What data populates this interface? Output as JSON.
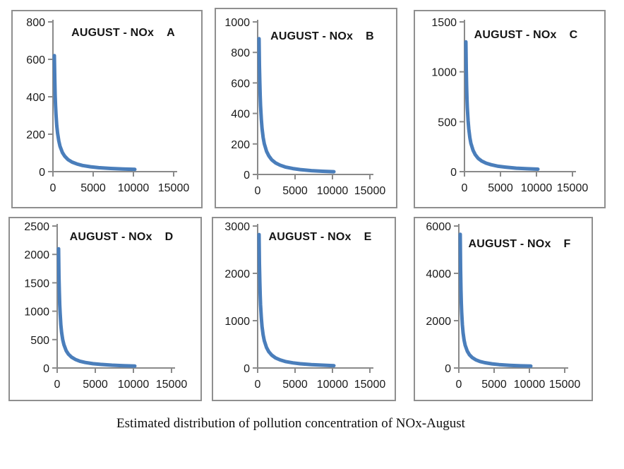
{
  "caption": "Estimated distribution of pollution concentration of NOx-August",
  "colors": {
    "curve": "#4A7EBB",
    "axis": "#8A8A8A",
    "tick_text": "#1A1A1A",
    "panel_border": "#8F8F8F"
  },
  "chart_data": [
    {
      "type": "line",
      "title": "AUGUST - NOx",
      "panel": "A",
      "xlim": [
        0,
        15000
      ],
      "ylim": [
        0,
        800
      ],
      "xticks": [
        0,
        5000,
        10000,
        15000
      ],
      "yticks": [
        0,
        200,
        400,
        600,
        800
      ],
      "points": [
        [
          0,
          620
        ],
        [
          50,
          495
        ],
        [
          100,
          411
        ],
        [
          150,
          352
        ],
        [
          200,
          308
        ],
        [
          300,
          246
        ],
        [
          400,
          205
        ],
        [
          550,
          164
        ],
        [
          700,
          136
        ],
        [
          1000,
          102
        ],
        [
          1300,
          82
        ],
        [
          1700,
          64
        ],
        [
          2200,
          51
        ],
        [
          2800,
          41
        ],
        [
          3500,
          33
        ],
        [
          4500,
          26
        ],
        [
          5500,
          21
        ],
        [
          7000,
          17
        ],
        [
          8500,
          14
        ],
        [
          10000,
          12
        ]
      ]
    },
    {
      "type": "line",
      "title": "AUGUST - NOx",
      "panel": "B",
      "xlim": [
        0,
        15000
      ],
      "ylim": [
        0,
        1000
      ],
      "xticks": [
        0,
        5000,
        10000,
        15000
      ],
      "yticks": [
        0,
        200,
        400,
        600,
        800,
        1000
      ],
      "points": [
        [
          0,
          890
        ],
        [
          50,
          716
        ],
        [
          100,
          599
        ],
        [
          150,
          515
        ],
        [
          200,
          451
        ],
        [
          300,
          362
        ],
        [
          400,
          303
        ],
        [
          550,
          242
        ],
        [
          700,
          202
        ],
        [
          1000,
          152
        ],
        [
          1300,
          122
        ],
        [
          1700,
          96
        ],
        [
          2200,
          76
        ],
        [
          2800,
          61
        ],
        [
          3500,
          49
        ],
        [
          4500,
          39
        ],
        [
          5500,
          32
        ],
        [
          7000,
          25
        ],
        [
          8500,
          21
        ],
        [
          10000,
          18
        ]
      ]
    },
    {
      "type": "line",
      "title": "AUGUST - NOx",
      "panel": "C",
      "xlim": [
        0,
        15000
      ],
      "ylim": [
        0,
        1500
      ],
      "xticks": [
        0,
        5000,
        10000,
        15000
      ],
      "yticks": [
        0,
        500,
        1000,
        1500
      ],
      "points": [
        [
          0,
          1300
        ],
        [
          50,
          1036
        ],
        [
          100,
          861
        ],
        [
          150,
          737
        ],
        [
          200,
          644
        ],
        [
          300,
          514
        ],
        [
          400,
          428
        ],
        [
          550,
          342
        ],
        [
          700,
          284
        ],
        [
          1000,
          213
        ],
        [
          1300,
          170
        ],
        [
          1700,
          134
        ],
        [
          2200,
          106
        ],
        [
          2800,
          85
        ],
        [
          3500,
          69
        ],
        [
          4500,
          54
        ],
        [
          5500,
          45
        ],
        [
          7000,
          35
        ],
        [
          8500,
          29
        ],
        [
          10000,
          25
        ]
      ]
    },
    {
      "type": "line",
      "title": "AUGUST - NOx",
      "panel": "D",
      "xlim": [
        0,
        15000
      ],
      "ylim": [
        0,
        2500
      ],
      "xticks": [
        0,
        5000,
        10000,
        15000
      ],
      "yticks": [
        0,
        500,
        1000,
        1500,
        2000,
        2500
      ],
      "points": [
        [
          0,
          2100
        ],
        [
          50,
          1622
        ],
        [
          100,
          1321
        ],
        [
          150,
          1114
        ],
        [
          200,
          963
        ],
        [
          300,
          758
        ],
        [
          400,
          625
        ],
        [
          550,
          495
        ],
        [
          700,
          409
        ],
        [
          1000,
          304
        ],
        [
          1300,
          242
        ],
        [
          1700,
          190
        ],
        [
          2200,
          150
        ],
        [
          2800,
          120
        ],
        [
          3500,
          97
        ],
        [
          4500,
          76
        ],
        [
          5500,
          63
        ],
        [
          7000,
          50
        ],
        [
          8500,
          41
        ],
        [
          10000,
          35
        ]
      ]
    },
    {
      "type": "line",
      "title": "AUGUST - NOx",
      "panel": "E",
      "xlim": [
        0,
        15000
      ],
      "ylim": [
        0,
        3000
      ],
      "xticks": [
        0,
        5000,
        10000,
        15000
      ],
      "yticks": [
        0,
        1000,
        2000,
        3000
      ],
      "points": [
        [
          0,
          2820
        ],
        [
          50,
          2209
        ],
        [
          100,
          1815
        ],
        [
          150,
          1540
        ],
        [
          200,
          1338
        ],
        [
          300,
          1060
        ],
        [
          400,
          877
        ],
        [
          550,
          697
        ],
        [
          700,
          578
        ],
        [
          1000,
          431
        ],
        [
          1300,
          344
        ],
        [
          1700,
          271
        ],
        [
          2200,
          214
        ],
        [
          2800,
          171
        ],
        [
          3500,
          138
        ],
        [
          4500,
          109
        ],
        [
          5500,
          90
        ],
        [
          7000,
          71
        ],
        [
          8500,
          59
        ],
        [
          10000,
          50
        ]
      ]
    },
    {
      "type": "line",
      "title": "AUGUST - NOx",
      "panel": "F",
      "xlim": [
        0,
        15000
      ],
      "ylim": [
        0,
        6000
      ],
      "xticks": [
        0,
        5000,
        10000,
        15000
      ],
      "yticks": [
        0,
        2000,
        4000,
        6000
      ],
      "points": [
        [
          0,
          5650
        ],
        [
          50,
          4191
        ],
        [
          100,
          3331
        ],
        [
          150,
          2764
        ],
        [
          200,
          2362
        ],
        [
          300,
          1829
        ],
        [
          400,
          1493
        ],
        [
          550,
          1170
        ],
        [
          700,
          962
        ],
        [
          1000,
          710
        ],
        [
          1300,
          562
        ],
        [
          1700,
          440
        ],
        [
          2200,
          346
        ],
        [
          2800,
          276
        ],
        [
          3500,
          223
        ],
        [
          4500,
          175
        ],
        [
          5500,
          144
        ],
        [
          7000,
          114
        ],
        [
          8500,
          94
        ],
        [
          10000,
          80
        ]
      ]
    }
  ]
}
